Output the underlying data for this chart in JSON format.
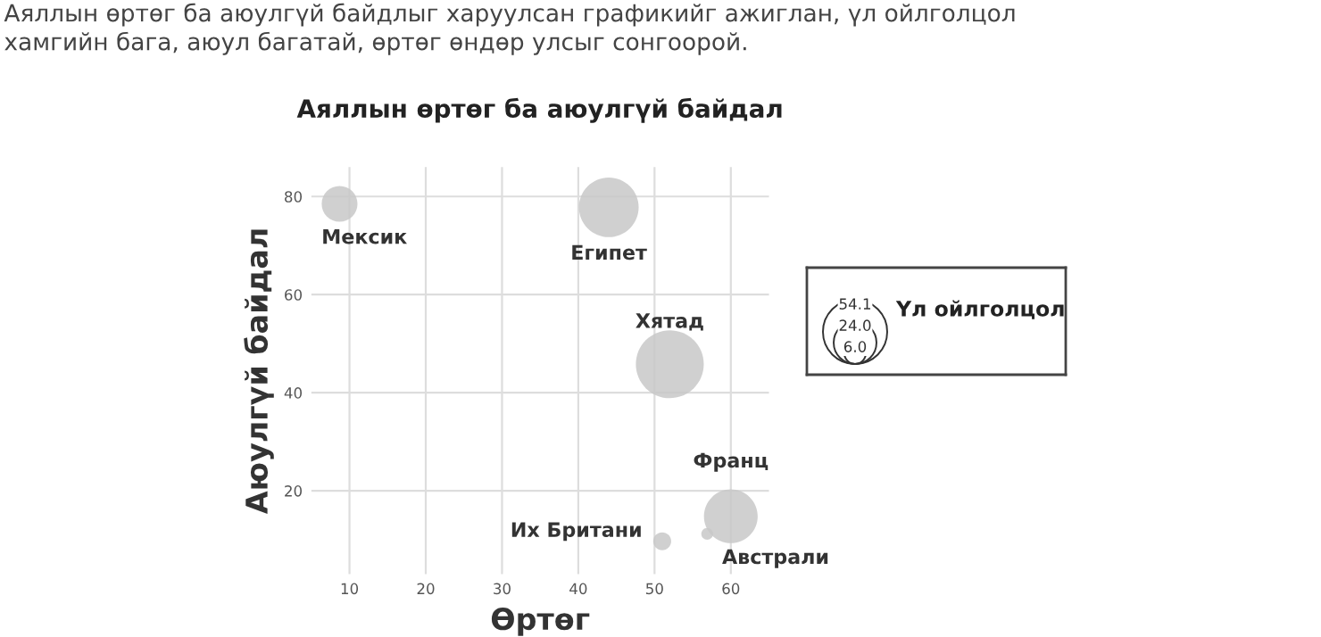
{
  "chart_data": {
    "type": "bubble",
    "title": "Аяллын өртөг ба аюулгүй байдал",
    "xlabel": "Өртөг",
    "ylabel": "Аюулгүй байдал",
    "legend_title": "Үл ойлголцол",
    "x": [
      8.7,
      44,
      52,
      60,
      51,
      56.9
    ],
    "values": [
      78.5,
      77.8,
      45.8,
      14.8,
      9.7,
      11.2
    ],
    "sizes": [
      16.7,
      46.5,
      60,
      37.6,
      4.2,
      1.8
    ],
    "size_legend": [
      {
        "value": 54.1,
        "label": "54.1"
      },
      {
        "value": 24.0,
        "label": "24.0"
      },
      {
        "value": 6.0,
        "label": "6.0"
      }
    ],
    "color": "#c8c8c8",
    "xlim": [
      5,
      65
    ],
    "ylim": [
      3,
      86
    ],
    "xticks": [
      10,
      20,
      30,
      40,
      50,
      60
    ],
    "yticks": [
      20,
      40,
      60,
      80
    ],
    "grid": true,
    "annotations": [
      {
        "text": "Мексик",
        "x": 8.7,
        "y": 78.5
      },
      {
        "text": "Египет",
        "x": 44,
        "y": 77.8
      },
      {
        "text": "Хятад",
        "x": 52,
        "y": 45.8
      },
      {
        "text": "Франц",
        "x": 60,
        "y": 14.8
      },
      {
        "text": "Их Британи",
        "x": 51,
        "y": 9.7
      },
      {
        "text": "Австрали",
        "x": 56.9,
        "y": 11.2
      },
      "Аяллын өртөг ба аюулгүй байдлыг харуулсан графикийг ажиглан, үл ойлголцол\nхамгийн бага, аюул багатай, өртөг өндөр улсыг сонгоорой."
    ]
  }
}
